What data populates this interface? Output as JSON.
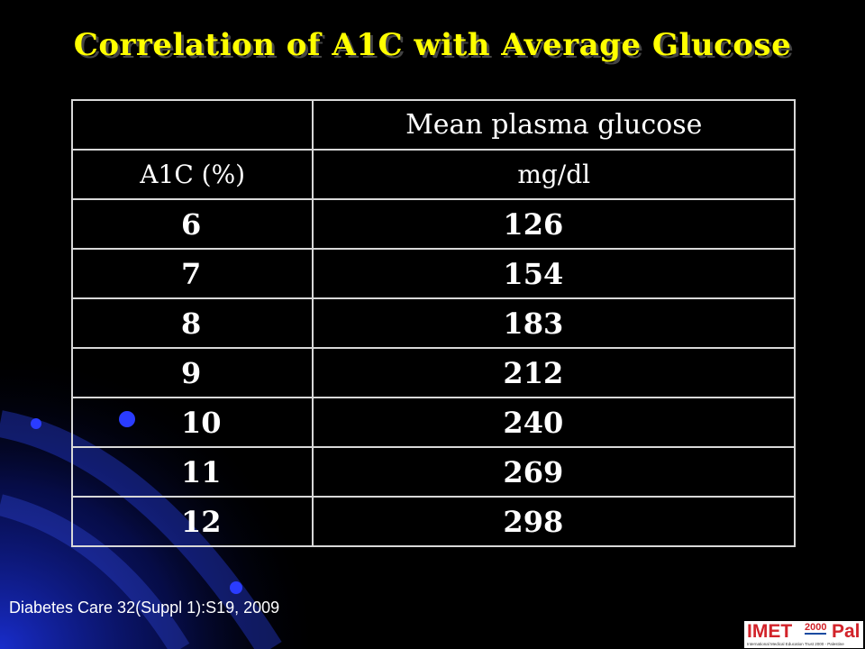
{
  "title": "Correlation of A1C with Average Glucose",
  "table": {
    "header_row1": [
      "",
      "Mean plasma glucose"
    ],
    "header_row2": [
      "A1C (%)",
      "mg/dl"
    ],
    "rows": [
      [
        "6",
        "126"
      ],
      [
        "7",
        "154"
      ],
      [
        "8",
        "183"
      ],
      [
        "9",
        "212"
      ],
      [
        "10",
        "240"
      ],
      [
        "11",
        "269"
      ],
      [
        "12",
        "298"
      ]
    ]
  },
  "citation": "Diabetes Care 32(Suppl 1):S19, 2009",
  "logo": {
    "left": "IMET",
    "year": "2000",
    "right": "Pal",
    "tagline": "International Medical Education Trust 2000 - Palestine"
  },
  "colors": {
    "background": "#000000",
    "title": "#ffff00",
    "text": "#ffffff",
    "accent": "#1a2fd6"
  }
}
